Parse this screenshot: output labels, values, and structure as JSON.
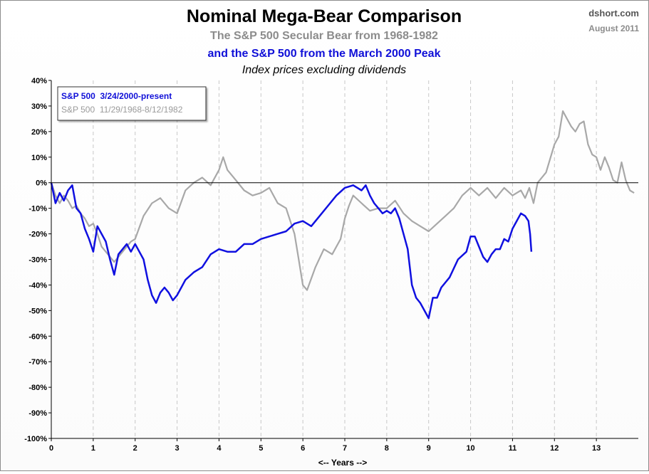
{
  "header": {
    "title": "Nominal Mega-Bear Comparison",
    "subtitle1": "The S&P 500 Secular Bear from 1968-1982",
    "subtitle2": "and the S&P 500 from the March 2000 Peak",
    "subtitle3": "Index prices excluding dividends",
    "source": "dshort.com",
    "date": "August 2011"
  },
  "colors": {
    "modern": "#1010e0",
    "historic": "#a8a8a8",
    "zero_line": "#000000",
    "grid": "#c8c8c8"
  },
  "chart_data": {
    "type": "line",
    "xlabel": "<-- Years -->",
    "ylabel": "",
    "xlim": [
      0,
      14
    ],
    "ylim": [
      -100,
      40
    ],
    "x_ticks": [
      "0",
      "1",
      "2",
      "3",
      "4",
      "5",
      "6",
      "7",
      "8",
      "9",
      "10",
      "11",
      "12",
      "13"
    ],
    "y_ticks": [
      "40%",
      "30%",
      "20%",
      "10%",
      "0%",
      "-10%",
      "-20%",
      "-30%",
      "-40%",
      "-50%",
      "-60%",
      "-70%",
      "-80%",
      "-90%",
      "-100%"
    ],
    "y_tick_values": [
      40,
      30,
      20,
      10,
      0,
      -10,
      -20,
      -30,
      -40,
      -50,
      -60,
      -70,
      -80,
      -90,
      -100
    ],
    "grid": "vertical dashed",
    "legend_position": "top-left",
    "series": [
      {
        "name": "S&P 500  3/24/2000-present",
        "x": [
          0,
          0.1,
          0.2,
          0.3,
          0.4,
          0.5,
          0.6,
          0.7,
          0.8,
          0.9,
          1.0,
          1.1,
          1.2,
          1.3,
          1.4,
          1.5,
          1.6,
          1.7,
          1.8,
          1.9,
          2.0,
          2.1,
          2.2,
          2.3,
          2.4,
          2.5,
          2.6,
          2.7,
          2.8,
          2.9,
          3.0,
          3.2,
          3.4,
          3.6,
          3.8,
          4.0,
          4.2,
          4.4,
          4.6,
          4.8,
          5.0,
          5.2,
          5.4,
          5.6,
          5.8,
          6.0,
          6.2,
          6.4,
          6.6,
          6.8,
          7.0,
          7.2,
          7.4,
          7.5,
          7.6,
          7.7,
          7.8,
          7.9,
          8.0,
          8.1,
          8.2,
          8.3,
          8.4,
          8.5,
          8.6,
          8.7,
          8.8,
          8.9,
          9.0,
          9.1,
          9.2,
          9.3,
          9.5,
          9.7,
          9.9,
          10.0,
          10.1,
          10.2,
          10.3,
          10.4,
          10.5,
          10.6,
          10.7,
          10.8,
          10.9,
          11.0,
          11.1,
          11.2,
          11.3,
          11.38,
          11.42,
          11.45
        ],
        "y": [
          0,
          -8,
          -4,
          -7,
          -3,
          -1,
          -10,
          -12,
          -18,
          -22,
          -27,
          -17,
          -20,
          -23,
          -30,
          -36,
          -28,
          -26,
          -24,
          -27,
          -24,
          -27,
          -30,
          -38,
          -44,
          -47,
          -43,
          -41,
          -43,
          -46,
          -44,
          -38,
          -35,
          -33,
          -28,
          -26,
          -27,
          -27,
          -24,
          -24,
          -22,
          -21,
          -20,
          -19,
          -16,
          -15,
          -17,
          -13,
          -9,
          -5,
          -2,
          -1,
          -3,
          -1,
          -5,
          -8,
          -10,
          -12,
          -11,
          -12,
          -10,
          -14,
          -20,
          -26,
          -40,
          -45,
          -47,
          -50,
          -53,
          -45,
          -45,
          -41,
          -37,
          -30,
          -27,
          -21,
          -21,
          -25,
          -29,
          -31,
          -28,
          -26,
          -26,
          -22,
          -23,
          -18,
          -15,
          -12,
          -13,
          -15,
          -20,
          -27
        ]
      },
      {
        "name": "S&P 500  11/29/1968-8/12/1982",
        "x": [
          0,
          0.1,
          0.2,
          0.3,
          0.4,
          0.5,
          0.6,
          0.7,
          0.8,
          0.9,
          1.0,
          1.1,
          1.2,
          1.3,
          1.4,
          1.5,
          1.6,
          1.7,
          1.8,
          1.9,
          2.0,
          2.2,
          2.4,
          2.6,
          2.8,
          3.0,
          3.2,
          3.4,
          3.6,
          3.8,
          4.0,
          4.1,
          4.2,
          4.4,
          4.6,
          4.8,
          5.0,
          5.2,
          5.4,
          5.6,
          5.8,
          5.9,
          6.0,
          6.1,
          6.3,
          6.5,
          6.7,
          6.9,
          7.0,
          7.1,
          7.2,
          7.4,
          7.6,
          7.8,
          8.0,
          8.2,
          8.4,
          8.6,
          8.8,
          9.0,
          9.2,
          9.4,
          9.6,
          9.8,
          10.0,
          10.2,
          10.4,
          10.6,
          10.8,
          11.0,
          11.2,
          11.3,
          11.4,
          11.5,
          11.6,
          11.8,
          12.0,
          12.1,
          12.2,
          12.3,
          12.4,
          12.5,
          12.6,
          12.7,
          12.8,
          12.9,
          13.0,
          13.1,
          13.2,
          13.3,
          13.4,
          13.5,
          13.6,
          13.7,
          13.8,
          13.9
        ],
        "y": [
          0,
          -5,
          -8,
          -5,
          -7,
          -10,
          -9,
          -12,
          -14,
          -17,
          -16,
          -20,
          -25,
          -27,
          -29,
          -31,
          -29,
          -27,
          -25,
          -23,
          -22,
          -13,
          -8,
          -6,
          -10,
          -12,
          -3,
          0,
          2,
          -1,
          5,
          10,
          5,
          1,
          -3,
          -5,
          -4,
          -2,
          -8,
          -10,
          -20,
          -30,
          -40,
          -42,
          -33,
          -26,
          -28,
          -22,
          -14,
          -9,
          -5,
          -8,
          -11,
          -10,
          -10,
          -7,
          -12,
          -15,
          -17,
          -19,
          -16,
          -13,
          -10,
          -5,
          -2,
          -5,
          -2,
          -6,
          -2,
          -5,
          -3,
          -6,
          -2,
          -8,
          0,
          4,
          15,
          18,
          28,
          25,
          22,
          20,
          23,
          24,
          15,
          11,
          10,
          5,
          10,
          6,
          1,
          0,
          8,
          1,
          -3,
          -4
        ]
      }
    ]
  }
}
